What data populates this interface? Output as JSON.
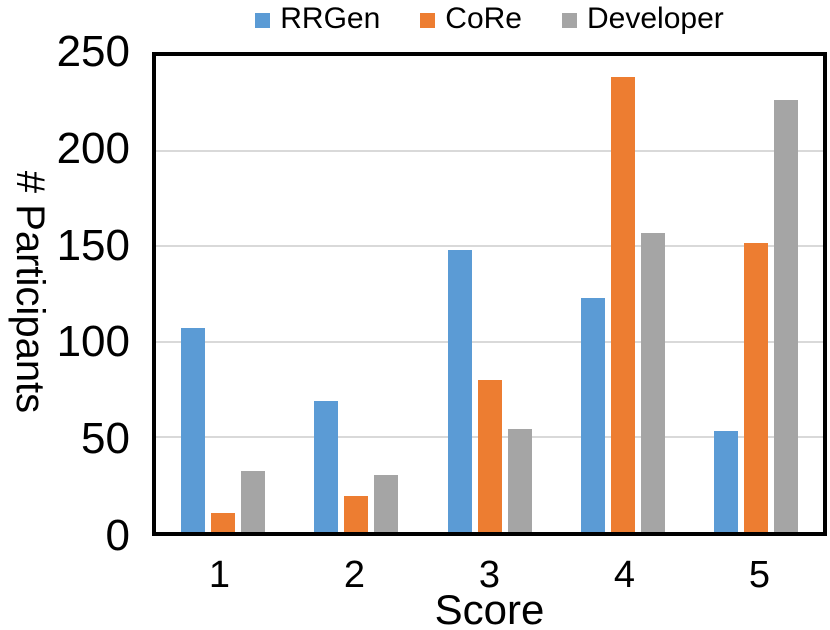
{
  "chart_data": {
    "type": "bar",
    "title": "",
    "xlabel": "Score",
    "ylabel": "# Participants",
    "categories": [
      "1",
      "2",
      "3",
      "4",
      "5"
    ],
    "series": [
      {
        "name": "RRGen",
        "color": "#5B9BD5",
        "values": [
          107,
          69,
          148,
          123,
          53
        ]
      },
      {
        "name": "CoRe",
        "color": "#ED7D31",
        "values": [
          10,
          19,
          80,
          239,
          152
        ]
      },
      {
        "name": "Developer",
        "color": "#A5A5A5",
        "values": [
          32,
          30,
          54,
          157,
          227
        ]
      }
    ],
    "ylim": [
      0,
      250
    ],
    "yticks": [
      0,
      50,
      100,
      150,
      200,
      250
    ],
    "gridline_values": [
      50,
      100,
      150,
      200
    ],
    "grid": true,
    "legend_position": "top",
    "axis_color": "#000000",
    "gridline_color": "#D9D9D9",
    "background_color": "#FFFFFF"
  }
}
